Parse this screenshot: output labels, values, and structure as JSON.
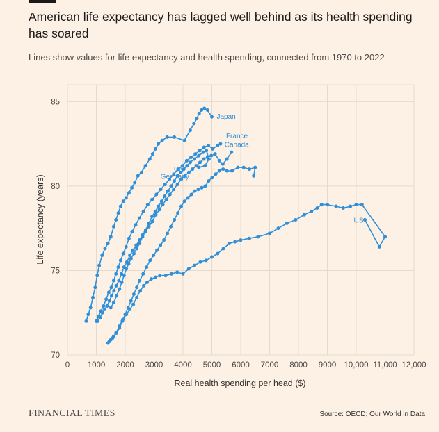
{
  "page": {
    "title": "American life expectancy has lagged well behind as its health spending has soared",
    "subtitle": "Lines show values for life expectancy and health spending, connected from 1970 to 2022",
    "brand": "FINANCIAL TIMES",
    "source": "Source: OECD; Our World in Data"
  },
  "colors": {
    "background": "#fdf1e5",
    "series": "#2f8fd8",
    "grid": "#e6d9ce"
  },
  "chart_data": {
    "type": "scatter",
    "connected": true,
    "title": "",
    "xlabel": "Real health spending per head ($)",
    "ylabel": "Life expectancy (years)",
    "xlim": [
      0,
      12000
    ],
    "ylim": [
      70,
      86
    ],
    "x_ticks": [
      0,
      1000,
      2000,
      3000,
      4000,
      5000,
      6000,
      7000,
      8000,
      9000,
      10000,
      11000,
      12000
    ],
    "x_tick_labels": [
      "0",
      "1000",
      "2000",
      "3000",
      "4000",
      "5000",
      "6000",
      "7000",
      "8000",
      "9000",
      "10,000",
      "11,000",
      "12,000"
    ],
    "y_ticks": [
      70,
      75,
      80,
      85
    ],
    "y_tick_labels": [
      "70",
      "75",
      "80",
      "85"
    ],
    "grid": true,
    "series": [
      {
        "name": "Japan",
        "points": [
          [
            650,
            72.0
          ],
          [
            720,
            72.4
          ],
          [
            800,
            72.8
          ],
          [
            880,
            73.4
          ],
          [
            960,
            74.0
          ],
          [
            1030,
            74.7
          ],
          [
            1100,
            75.3
          ],
          [
            1200,
            75.9
          ],
          [
            1300,
            76.3
          ],
          [
            1400,
            76.6
          ],
          [
            1500,
            77.0
          ],
          [
            1600,
            77.6
          ],
          [
            1680,
            78.0
          ],
          [
            1760,
            78.4
          ],
          [
            1840,
            78.8
          ],
          [
            1930,
            79.1
          ],
          [
            2030,
            79.3
          ],
          [
            2130,
            79.6
          ],
          [
            2230,
            79.9
          ],
          [
            2330,
            80.2
          ],
          [
            2440,
            80.6
          ],
          [
            2560,
            80.8
          ],
          [
            2700,
            81.2
          ],
          [
            2850,
            81.6
          ],
          [
            2950,
            81.9
          ],
          [
            3050,
            82.2
          ],
          [
            3150,
            82.5
          ],
          [
            3280,
            82.7
          ],
          [
            3450,
            82.9
          ],
          [
            3700,
            82.9
          ],
          [
            4050,
            82.7
          ],
          [
            4250,
            83.3
          ],
          [
            4380,
            83.7
          ],
          [
            4480,
            84.0
          ],
          [
            4560,
            84.3
          ],
          [
            4640,
            84.5
          ],
          [
            4740,
            84.6
          ],
          [
            4850,
            84.5
          ],
          [
            5000,
            84.1
          ]
        ]
      },
      {
        "name": "France",
        "points": [
          [
            1000,
            72.0
          ],
          [
            1080,
            72.3
          ],
          [
            1160,
            72.6
          ],
          [
            1250,
            72.9
          ],
          [
            1340,
            73.3
          ],
          [
            1430,
            73.7
          ],
          [
            1520,
            74.0
          ],
          [
            1600,
            74.4
          ],
          [
            1680,
            74.8
          ],
          [
            1760,
            75.2
          ],
          [
            1840,
            75.6
          ],
          [
            1930,
            76.0
          ],
          [
            2030,
            76.4
          ],
          [
            2130,
            76.9
          ],
          [
            2240,
            77.3
          ],
          [
            2360,
            77.7
          ],
          [
            2490,
            78.1
          ],
          [
            2630,
            78.5
          ],
          [
            2780,
            78.9
          ],
          [
            2930,
            79.2
          ],
          [
            3080,
            79.5
          ],
          [
            3230,
            79.8
          ],
          [
            3380,
            80.1
          ],
          [
            3530,
            80.4
          ],
          [
            3680,
            80.7
          ],
          [
            3830,
            81.0
          ],
          [
            3980,
            81.2
          ],
          [
            4130,
            81.5
          ],
          [
            4280,
            81.7
          ],
          [
            4430,
            81.9
          ],
          [
            4580,
            82.1
          ],
          [
            4730,
            82.3
          ],
          [
            4880,
            82.4
          ],
          [
            5030,
            82.2
          ],
          [
            5200,
            82.4
          ],
          [
            5300,
            82.5
          ]
        ]
      },
      {
        "name": "Canada",
        "points": [
          [
            1500,
            72.8
          ],
          [
            1600,
            73.1
          ],
          [
            1700,
            73.5
          ],
          [
            1800,
            73.9
          ],
          [
            1880,
            74.3
          ],
          [
            1960,
            74.7
          ],
          [
            2040,
            75.1
          ],
          [
            2120,
            75.4
          ],
          [
            2200,
            75.7
          ],
          [
            2300,
            76.0
          ],
          [
            2400,
            76.3
          ],
          [
            2500,
            76.6
          ],
          [
            2600,
            77.0
          ],
          [
            2700,
            77.3
          ],
          [
            2820,
            77.6
          ],
          [
            2940,
            77.9
          ],
          [
            3060,
            78.3
          ],
          [
            3180,
            78.6
          ],
          [
            3300,
            78.9
          ],
          [
            3420,
            79.2
          ],
          [
            3550,
            79.5
          ],
          [
            3680,
            79.8
          ],
          [
            3810,
            80.1
          ],
          [
            3940,
            80.4
          ],
          [
            4070,
            80.6
          ],
          [
            4200,
            80.8
          ],
          [
            4330,
            81.0
          ],
          [
            4460,
            81.2
          ],
          [
            4590,
            81.4
          ],
          [
            4720,
            81.6
          ],
          [
            4850,
            81.7
          ],
          [
            4980,
            81.8
          ],
          [
            5110,
            81.9
          ],
          [
            5260,
            81.5
          ],
          [
            5380,
            81.3
          ],
          [
            5520,
            81.6
          ],
          [
            5680,
            82.0
          ]
        ]
      },
      {
        "name": "UK",
        "points": [
          [
            1050,
            72.0
          ],
          [
            1130,
            72.2
          ],
          [
            1210,
            72.5
          ],
          [
            1290,
            72.7
          ],
          [
            1370,
            72.9
          ],
          [
            1450,
            73.2
          ],
          [
            1530,
            73.5
          ],
          [
            1610,
            73.8
          ],
          [
            1690,
            74.1
          ],
          [
            1780,
            74.4
          ],
          [
            1870,
            74.8
          ],
          [
            1960,
            75.2
          ],
          [
            2060,
            75.5
          ],
          [
            2160,
            75.9
          ],
          [
            2270,
            76.2
          ],
          [
            2380,
            76.5
          ],
          [
            2490,
            76.8
          ],
          [
            2600,
            77.1
          ],
          [
            2710,
            77.4
          ],
          [
            2820,
            77.8
          ],
          [
            2930,
            78.2
          ],
          [
            3040,
            78.5
          ],
          [
            3150,
            78.8
          ],
          [
            3260,
            79.1
          ],
          [
            3370,
            79.4
          ],
          [
            3480,
            79.7
          ],
          [
            3590,
            80.0
          ],
          [
            3700,
            80.3
          ],
          [
            3810,
            80.6
          ],
          [
            3920,
            80.8
          ],
          [
            4030,
            81.0
          ],
          [
            4140,
            81.2
          ],
          [
            4250,
            81.4
          ],
          [
            4400,
            81.6
          ],
          [
            4550,
            81.8
          ],
          [
            4700,
            82.0
          ],
          [
            4810,
            82.1
          ],
          [
            4900,
            81.6
          ],
          [
            4760,
            81.2
          ],
          [
            4550,
            81.1
          ]
        ]
      },
      {
        "name": "Germany",
        "points": [
          [
            1400,
            70.7
          ],
          [
            1500,
            70.9
          ],
          [
            1600,
            71.1
          ],
          [
            1700,
            71.3
          ],
          [
            1800,
            71.6
          ],
          [
            1900,
            72.0
          ],
          [
            2000,
            72.4
          ],
          [
            2100,
            72.8
          ],
          [
            2200,
            73.2
          ],
          [
            2300,
            73.6
          ],
          [
            2400,
            74.0
          ],
          [
            2500,
            74.4
          ],
          [
            2620,
            74.8
          ],
          [
            2740,
            75.2
          ],
          [
            2860,
            75.6
          ],
          [
            2980,
            75.9
          ],
          [
            3100,
            76.2
          ],
          [
            3220,
            76.5
          ],
          [
            3340,
            76.8
          ],
          [
            3460,
            77.2
          ],
          [
            3580,
            77.6
          ],
          [
            3700,
            78.0
          ],
          [
            3820,
            78.4
          ],
          [
            3940,
            78.8
          ],
          [
            4050,
            79.1
          ],
          [
            4170,
            79.3
          ],
          [
            4290,
            79.5
          ],
          [
            4410,
            79.7
          ],
          [
            4530,
            79.8
          ],
          [
            4650,
            79.9
          ],
          [
            4770,
            80.0
          ],
          [
            4890,
            80.3
          ],
          [
            5010,
            80.5
          ],
          [
            5130,
            80.7
          ],
          [
            5260,
            80.9
          ],
          [
            5390,
            81.0
          ],
          [
            5520,
            80.9
          ],
          [
            5700,
            80.9
          ],
          [
            5900,
            81.1
          ],
          [
            6100,
            81.1
          ],
          [
            6300,
            81.0
          ],
          [
            6500,
            81.1
          ],
          [
            6450,
            80.6
          ]
        ]
      },
      {
        "name": "US",
        "points": [
          [
            1450,
            70.8
          ],
          [
            1560,
            71.0
          ],
          [
            1680,
            71.3
          ],
          [
            1800,
            71.7
          ],
          [
            1920,
            72.1
          ],
          [
            2040,
            72.4
          ],
          [
            2160,
            72.7
          ],
          [
            2280,
            73.0
          ],
          [
            2400,
            73.4
          ],
          [
            2520,
            73.8
          ],
          [
            2640,
            74.1
          ],
          [
            2760,
            74.3
          ],
          [
            2900,
            74.5
          ],
          [
            3050,
            74.6
          ],
          [
            3200,
            74.7
          ],
          [
            3400,
            74.7
          ],
          [
            3600,
            74.8
          ],
          [
            3800,
            74.9
          ],
          [
            4000,
            74.8
          ],
          [
            4200,
            75.1
          ],
          [
            4400,
            75.3
          ],
          [
            4600,
            75.5
          ],
          [
            4800,
            75.6
          ],
          [
            5000,
            75.8
          ],
          [
            5200,
            76.0
          ],
          [
            5400,
            76.3
          ],
          [
            5600,
            76.6
          ],
          [
            5800,
            76.7
          ],
          [
            6000,
            76.8
          ],
          [
            6300,
            76.9
          ],
          [
            6600,
            77.0
          ],
          [
            7000,
            77.2
          ],
          [
            7300,
            77.5
          ],
          [
            7600,
            77.8
          ],
          [
            7900,
            78.0
          ],
          [
            8200,
            78.3
          ],
          [
            8450,
            78.5
          ],
          [
            8650,
            78.7
          ],
          [
            8800,
            78.9
          ],
          [
            9000,
            78.9
          ],
          [
            9300,
            78.8
          ],
          [
            9550,
            78.7
          ],
          [
            9800,
            78.8
          ],
          [
            10000,
            78.9
          ],
          [
            10200,
            78.9
          ],
          [
            11000,
            77.0
          ],
          [
            10800,
            76.4
          ],
          [
            10300,
            78.0
          ]
        ]
      }
    ]
  }
}
